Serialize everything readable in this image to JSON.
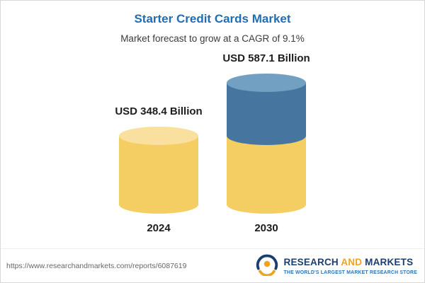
{
  "header": {
    "title": "Starter Credit Cards Market",
    "subtitle": "Market forecast to grow at a CAGR of 9.1%"
  },
  "chart_data": {
    "type": "bar",
    "title": "Starter Credit Cards Market",
    "subtitle": "Market forecast to grow at a CAGR of 9.1%",
    "unit": "USD Billion",
    "cagr_pct": 9.1,
    "categories": [
      "2024",
      "2030"
    ],
    "values": [
      348.4,
      587.1
    ],
    "value_labels": [
      "USD 348.4 Billion",
      "USD 587.1 Billion"
    ],
    "bar_style": "3d-cylinder",
    "stacking_note": "2030 bar: yellow base equals the 2024 value (348.4); blue top segment is the growth to 587.1",
    "legend": "none",
    "grid": false,
    "colors": {
      "title_accent": "#1f6db4",
      "yellow_body": "#f4cd63",
      "yellow_cap": "#f9e09e",
      "blue_body": "#46769f",
      "blue_cap": "#72a0c2",
      "label_text": "#1d1d1d"
    }
  },
  "footer": {
    "url": "https://www.researchandmarkets.com/reports/6087619",
    "logo": {
      "word_research": "RESEARCH",
      "word_and": "AND",
      "word_markets": "MARKETS",
      "tagline": "THE WORLD'S LARGEST MARKET RESEARCH STORE"
    }
  }
}
